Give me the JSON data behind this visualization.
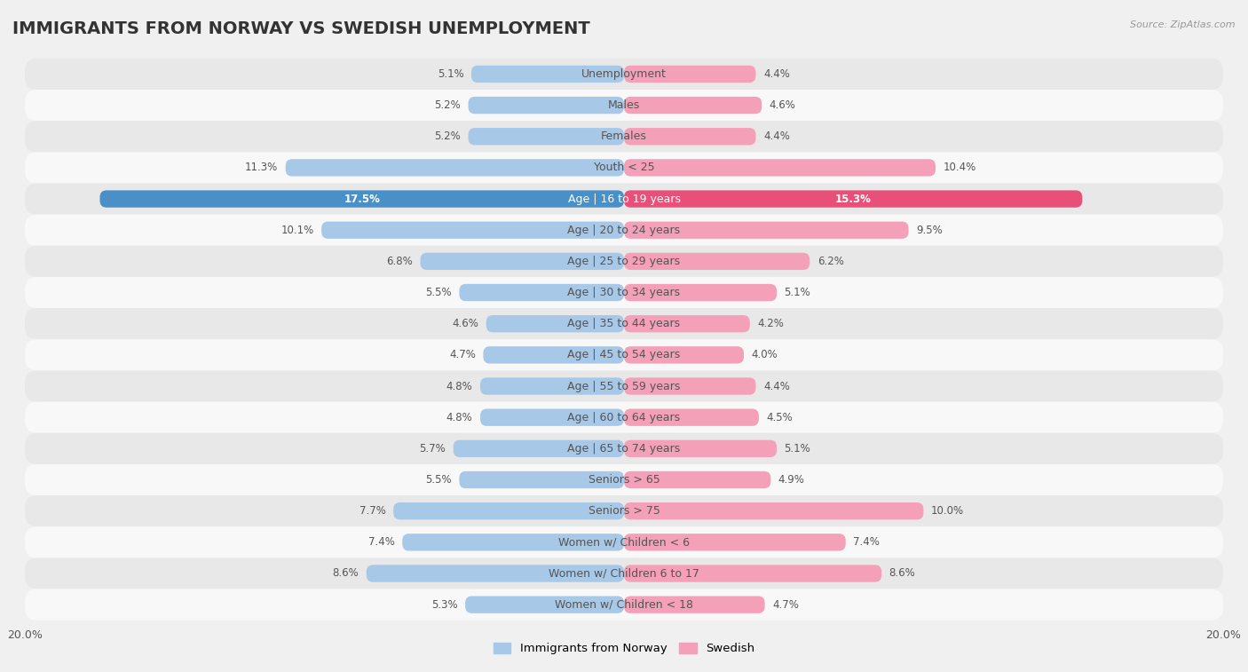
{
  "title": "IMMIGRANTS FROM NORWAY VS SWEDISH UNEMPLOYMENT",
  "source": "Source: ZipAtlas.com",
  "categories": [
    "Unemployment",
    "Males",
    "Females",
    "Youth < 25",
    "Age | 16 to 19 years",
    "Age | 20 to 24 years",
    "Age | 25 to 29 years",
    "Age | 30 to 34 years",
    "Age | 35 to 44 years",
    "Age | 45 to 54 years",
    "Age | 55 to 59 years",
    "Age | 60 to 64 years",
    "Age | 65 to 74 years",
    "Seniors > 65",
    "Seniors > 75",
    "Women w/ Children < 6",
    "Women w/ Children 6 to 17",
    "Women w/ Children < 18"
  ],
  "norway_values": [
    5.1,
    5.2,
    5.2,
    11.3,
    17.5,
    10.1,
    6.8,
    5.5,
    4.6,
    4.7,
    4.8,
    4.8,
    5.7,
    5.5,
    7.7,
    7.4,
    8.6,
    5.3
  ],
  "swedish_values": [
    4.4,
    4.6,
    4.4,
    10.4,
    15.3,
    9.5,
    6.2,
    5.1,
    4.2,
    4.0,
    4.4,
    4.5,
    5.1,
    4.9,
    10.0,
    7.4,
    8.6,
    4.7
  ],
  "norway_color": "#a8c8e8",
  "swedish_color": "#f4a0b8",
  "norway_highlight_color": "#4a90c8",
  "swedish_highlight_color": "#e8507a",
  "background_color": "#f0f0f0",
  "row_color_odd": "#e8e8e8",
  "row_color_even": "#f8f8f8",
  "highlight_row_index": 4,
  "xlim": 20.0,
  "legend_label_norway": "Immigrants from Norway",
  "legend_label_swedish": "Swedish",
  "title_fontsize": 14,
  "label_fontsize": 9,
  "value_fontsize": 8.5,
  "axis_fontsize": 9
}
